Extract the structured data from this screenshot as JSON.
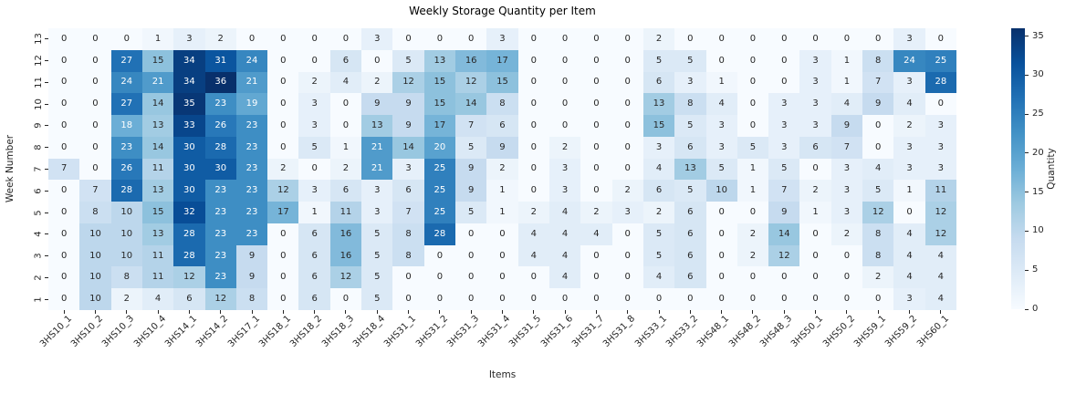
{
  "chart_data": {
    "type": "heatmap",
    "title": "Weekly Storage Quantity per Item",
    "xlabel": "Items",
    "ylabel": "Week Number",
    "colorbar_label": "Quantity",
    "colorbar_ticks": [
      0,
      5,
      10,
      15,
      20,
      25,
      30,
      35
    ],
    "vmin": 0,
    "vmax": 36,
    "colormap_name": "Blues",
    "colormap_stops": [
      "#f7fbff",
      "#deebf7",
      "#c6dbef",
      "#9ecae1",
      "#6baed6",
      "#4292c6",
      "#2171b5",
      "#08519c",
      "#08306b"
    ],
    "annotation_dark_color": "#262626",
    "annotation_light_color": "#ffffff",
    "x_categories": [
      "3HS10_1",
      "3HS10_2",
      "3HS10_3",
      "3HS10_4",
      "3HS14_1",
      "3HS14_2",
      "3HS17_1",
      "3HS18_1",
      "3HS18_2",
      "3HS18_3",
      "3HS18_4",
      "3HS31_1",
      "3HS31_2",
      "3HS31_3",
      "3HS31_4",
      "3HS31_5",
      "3HS31_6",
      "3HS31_7",
      "3HS31_8",
      "3HS33_1",
      "3HS33_2",
      "3HS48_1",
      "3HS48_2",
      "3HS48_3",
      "3HS50_1",
      "3HS50_2",
      "3HS59_1",
      "3HS59_2",
      "3HS60_1"
    ],
    "y_categories": [
      "13",
      "12",
      "11",
      "10",
      "9",
      "8",
      "7",
      "6",
      "5",
      "4",
      "3",
      "2",
      "1"
    ],
    "values": [
      [
        0,
        0,
        0,
        1,
        3,
        2,
        0,
        0,
        0,
        0,
        3,
        0,
        0,
        0,
        3,
        0,
        0,
        0,
        0,
        2,
        0,
        0,
        0,
        0,
        0,
        0,
        0,
        3,
        0
      ],
      [
        0,
        0,
        27,
        15,
        34,
        31,
        24,
        0,
        0,
        6,
        0,
        5,
        13,
        16,
        17,
        0,
        0,
        0,
        0,
        5,
        5,
        0,
        0,
        0,
        3,
        1,
        8,
        24,
        25
      ],
      [
        0,
        0,
        24,
        21,
        34,
        36,
        21,
        0,
        2,
        4,
        2,
        12,
        15,
        12,
        15,
        0,
        0,
        0,
        0,
        6,
        3,
        1,
        0,
        0,
        3,
        1,
        7,
        3,
        28
      ],
      [
        0,
        0,
        27,
        14,
        35,
        23,
        19,
        0,
        3,
        0,
        9,
        9,
        15,
        14,
        8,
        0,
        0,
        0,
        0,
        13,
        8,
        4,
        0,
        3,
        3,
        4,
        9,
        4,
        0
      ],
      [
        0,
        0,
        18,
        13,
        33,
        26,
        23,
        0,
        3,
        0,
        13,
        9,
        17,
        7,
        6,
        0,
        0,
        0,
        0,
        15,
        5,
        3,
        0,
        3,
        3,
        9,
        0,
        2,
        3
      ],
      [
        0,
        0,
        23,
        14,
        30,
        28,
        23,
        0,
        5,
        1,
        21,
        14,
        20,
        5,
        9,
        0,
        2,
        0,
        0,
        3,
        6,
        3,
        5,
        3,
        6,
        7,
        0,
        3,
        3
      ],
      [
        7,
        0,
        26,
        11,
        30,
        30,
        23,
        2,
        0,
        2,
        21,
        3,
        25,
        9,
        2,
        0,
        3,
        0,
        0,
        4,
        13,
        5,
        1,
        5,
        0,
        3,
        4,
        3,
        3
      ],
      [
        0,
        7,
        28,
        13,
        30,
        23,
        23,
        12,
        3,
        6,
        3,
        6,
        25,
        9,
        1,
        0,
        3,
        0,
        2,
        6,
        5,
        10,
        1,
        7,
        2,
        3,
        5,
        1,
        11
      ],
      [
        0,
        8,
        10,
        15,
        32,
        23,
        23,
        17,
        1,
        11,
        3,
        7,
        25,
        5,
        1,
        2,
        4,
        2,
        3,
        2,
        6,
        0,
        0,
        9,
        1,
        3,
        12,
        0,
        12
      ],
      [
        0,
        10,
        10,
        13,
        28,
        23,
        23,
        0,
        6,
        16,
        5,
        8,
        28,
        0,
        0,
        4,
        4,
        4,
        0,
        5,
        6,
        0,
        2,
        14,
        0,
        2,
        8,
        4,
        12
      ],
      [
        0,
        10,
        10,
        11,
        28,
        23,
        9,
        0,
        6,
        16,
        5,
        8,
        0,
        0,
        0,
        4,
        4,
        0,
        0,
        5,
        6,
        0,
        2,
        12,
        0,
        0,
        8,
        4,
        4
      ],
      [
        0,
        10,
        8,
        11,
        12,
        23,
        9,
        0,
        6,
        12,
        5,
        0,
        0,
        0,
        0,
        0,
        4,
        0,
        0,
        4,
        6,
        0,
        0,
        0,
        0,
        0,
        2,
        4,
        4
      ],
      [
        0,
        10,
        2,
        4,
        6,
        12,
        8,
        0,
        6,
        0,
        5,
        0,
        0,
        0,
        0,
        0,
        0,
        0,
        0,
        0,
        0,
        0,
        0,
        0,
        0,
        0,
        0,
        3,
        4
      ]
    ]
  }
}
